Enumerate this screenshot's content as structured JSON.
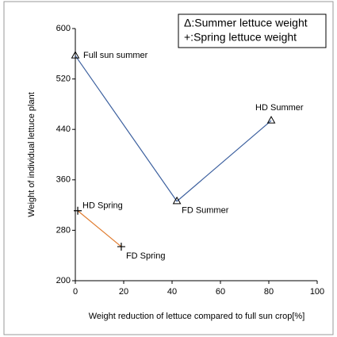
{
  "chart_data": {
    "type": "line",
    "x_label": "Weight reduction of lettuce compared to full sun crop[%]",
    "y_label": "Weight of individual lettuce plant",
    "xlim": [
      0,
      100
    ],
    "xticks": [
      0,
      20,
      40,
      60,
      80,
      100
    ],
    "ylim": [
      200,
      600
    ],
    "yticks": [
      200,
      280,
      360,
      440,
      520,
      600
    ],
    "legend": "top-right",
    "series": [
      {
        "name": "Δ:Summer lettuce weight",
        "color": "#3b5f9e",
        "marker": "triangle",
        "x": [
          0,
          42,
          81
        ],
        "values": [
          557,
          326,
          454
        ],
        "point_labels": [
          "Full sun summer",
          "FD Summer",
          "HD Summer"
        ]
      },
      {
        "name": "+:Spring lettuce weight",
        "color": "#e07b2e",
        "marker": "plus",
        "x": [
          1,
          19
        ],
        "values": [
          311,
          254
        ],
        "point_labels": [
          "HD Spring",
          "FD Spring"
        ]
      }
    ]
  }
}
